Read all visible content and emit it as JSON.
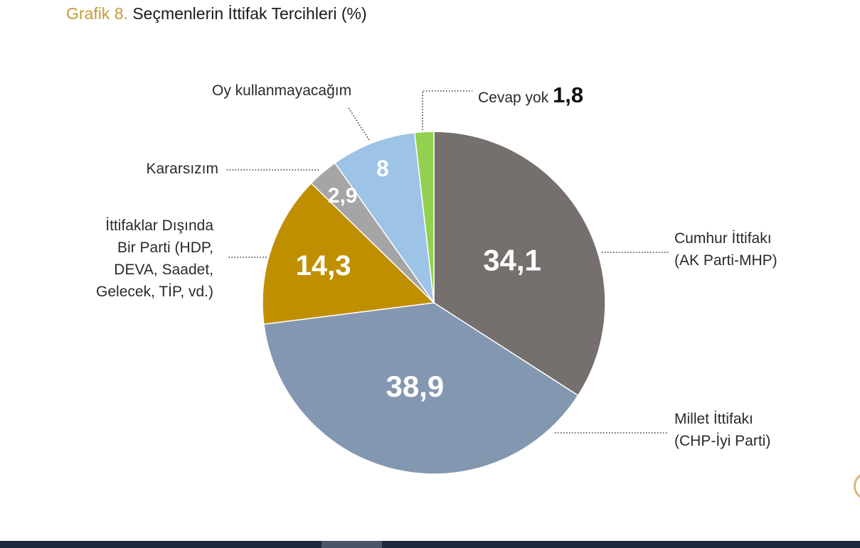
{
  "title": {
    "prefix": "Grafik 8.",
    "text": "Seçmenlerin İttifak Tercihleri (%)"
  },
  "chart_data": {
    "type": "pie",
    "title": "Seçmenlerin İttifak Tercihleri (%)",
    "slices": [
      {
        "label_lines": [
          "Cumhur İttifakı",
          "(AK Parti-MHP)"
        ],
        "value": 34.1,
        "display": "34,1",
        "color": "#756f6d"
      },
      {
        "label_lines": [
          "Millet İttifakı",
          "(CHP-İyi Parti)"
        ],
        "value": 38.9,
        "display": "38,9",
        "color": "#8497b0"
      },
      {
        "label_lines": [
          "İttifaklar Dışında",
          "Bir Parti (HDP,",
          "DEVA, Saadet,",
          "Gelecek, TİP, vd.)"
        ],
        "value": 14.3,
        "display": "14,3",
        "color": "#c08f00"
      },
      {
        "label_lines": [
          "Kararsızım"
        ],
        "value": 2.9,
        "display": "2,9",
        "color": "#a5a5a5"
      },
      {
        "label_lines": [
          "Oy kullanmayacağım"
        ],
        "value": 8,
        "display": "8",
        "color": "#9dc3e6"
      },
      {
        "label_lines": [
          "Cevap yok"
        ],
        "value": 1.8,
        "display": "1,8",
        "color": "#92d050"
      }
    ]
  }
}
